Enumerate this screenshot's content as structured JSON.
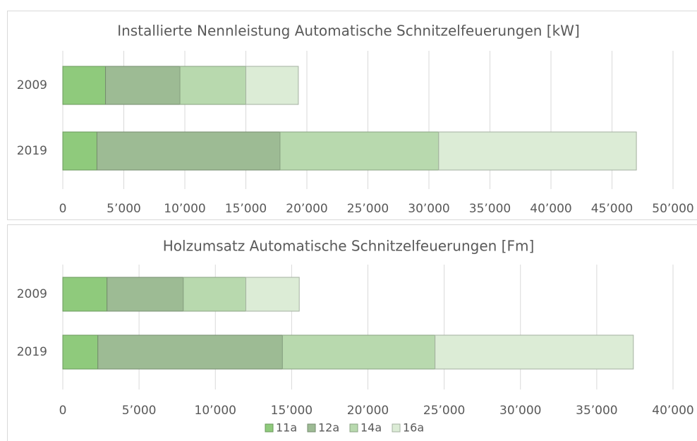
{
  "chart_data": [
    {
      "type": "bar",
      "title": "Installierte Nennleistung Automatische Schnitzelfeuerungen [kW]",
      "categories": [
        "2009",
        "2019"
      ],
      "series": [
        {
          "color": "#8fca7c",
          "values": [
            3500,
            2800
          ]
        },
        {
          "color": "#9dbb94",
          "values": [
            6100,
            15000
          ]
        },
        {
          "color": "#b8d9ae",
          "values": [
            5400,
            13000
          ]
        },
        {
          "color": "#dcecd6",
          "values": [
            4300,
            16200
          ]
        }
      ],
      "xlim": [
        0,
        50000
      ],
      "xticks": [
        0,
        {
          "value": 5000,
          "label": "5’000"
        },
        {
          "value": 10000,
          "label": "10’000"
        },
        {
          "value": 15000,
          "label": "15’000"
        },
        {
          "value": 20000,
          "label": "20’000"
        },
        {
          "value": 25000,
          "label": "25’000"
        },
        {
          "value": 30000,
          "label": "30’000"
        },
        {
          "value": 35000,
          "label": "35’000"
        },
        {
          "value": 40000,
          "label": "40’000"
        },
        {
          "value": 45000,
          "label": "45’000"
        },
        {
          "value": 50000,
          "label": "50’000"
        }
      ],
      "grid": true
    },
    {
      "type": "bar",
      "title": "Holzumsatz Automatische Schnitzelfeuerungen [Fm]",
      "categories": [
        "2009",
        "2019"
      ],
      "series": [
        {
          "name": "11a",
          "color": "#8fca7c",
          "values": [
            2900,
            2300
          ]
        },
        {
          "name": "12a",
          "color": "#9dbb94",
          "values": [
            5000,
            12100
          ]
        },
        {
          "name": "14a",
          "color": "#b8d9ae",
          "values": [
            4100,
            10000
          ]
        },
        {
          "name": "16a",
          "color": "#dcecd6",
          "values": [
            3500,
            13000
          ]
        }
      ],
      "xlim": [
        0,
        40000
      ],
      "xticks": [
        0,
        {
          "value": 5000,
          "label": "5’000"
        },
        {
          "value": 10000,
          "label": "10’000"
        },
        {
          "value": 15000,
          "label": "15’000"
        },
        {
          "value": 20000,
          "label": "20’000"
        },
        {
          "value": 25000,
          "label": "25’000"
        },
        {
          "value": 30000,
          "label": "30’000"
        },
        {
          "value": 35000,
          "label": "35’000"
        },
        {
          "value": 40000,
          "label": "40’000"
        }
      ],
      "grid": true
    }
  ]
}
